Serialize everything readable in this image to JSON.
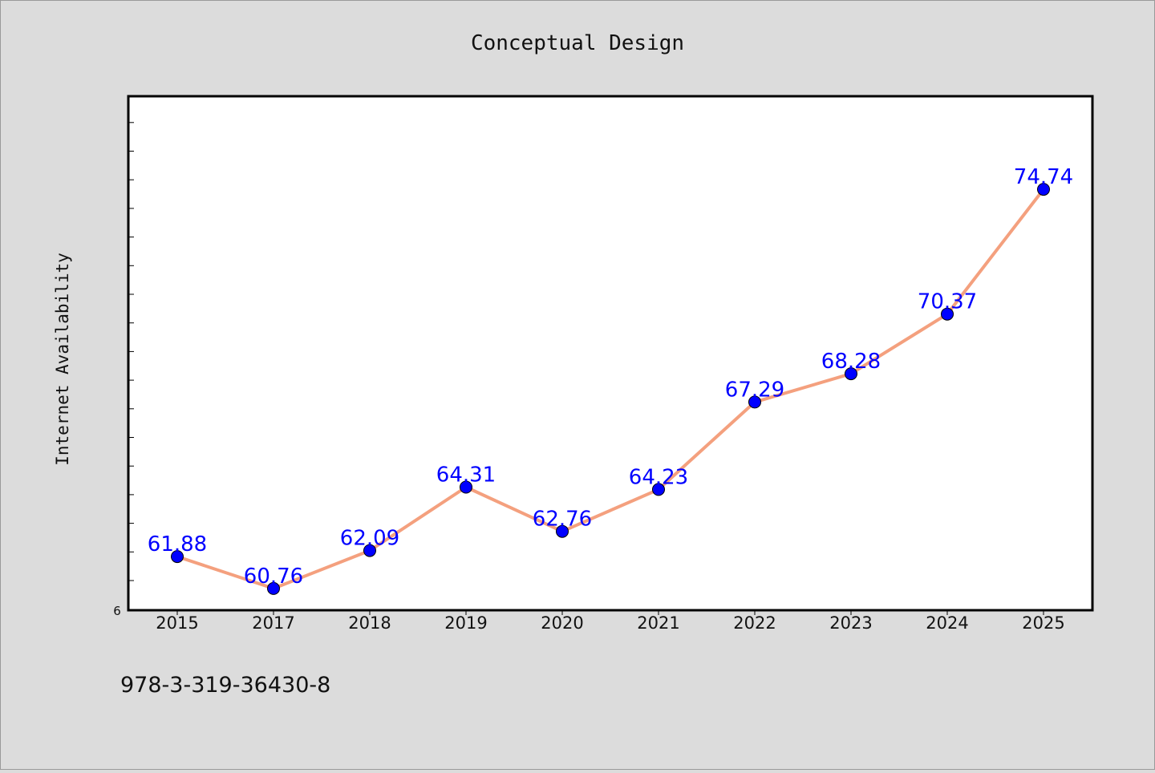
{
  "chart_data": {
    "type": "line",
    "title": "Conceptual Design",
    "xlabel": "",
    "ylabel": "Internet Availability",
    "categories": [
      "2015",
      "2017",
      "2018",
      "2019",
      "2020",
      "2021",
      "2022",
      "2023",
      "2024",
      "2025"
    ],
    "series": [
      {
        "values": [
          61.88,
          60.76,
          62.09,
          64.31,
          62.76,
          64.23,
          67.29,
          68.28,
          70.37,
          74.74
        ],
        "labels": [
          "61.88",
          "60.76",
          "62.09",
          "64.31",
          "62.76",
          "64.23",
          "67.29",
          "68.28",
          "70.37",
          "74.74"
        ]
      }
    ],
    "ylim": [
      60,
      78
    ],
    "y_tick_labels": [
      "6"
    ],
    "grid": false,
    "legend": "none",
    "colors": {
      "line": "#f4a07e",
      "marker": "#0000ff",
      "data_label": "#0000ff",
      "plot_background": "#ffffff",
      "figure_background": "#dcdcdc"
    }
  },
  "footer": {
    "isbn": "978-3-319-36430-8"
  }
}
